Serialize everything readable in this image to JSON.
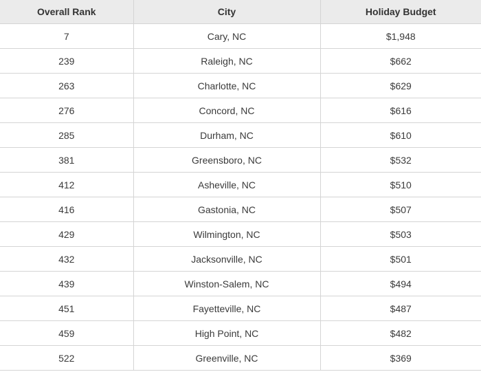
{
  "table": {
    "headers": [
      "Overall Rank",
      "City",
      "Holiday Budget"
    ],
    "rows": [
      [
        "7",
        "Cary, NC",
        "$1,948"
      ],
      [
        "239",
        "Raleigh, NC",
        "$662"
      ],
      [
        "263",
        "Charlotte, NC",
        "$629"
      ],
      [
        "276",
        "Concord, NC",
        "$616"
      ],
      [
        "285",
        "Durham, NC",
        "$610"
      ],
      [
        "381",
        "Greensboro, NC",
        "$532"
      ],
      [
        "412",
        "Asheville, NC",
        "$510"
      ],
      [
        "416",
        "Gastonia, NC",
        "$507"
      ],
      [
        "429",
        "Wilmington, NC",
        "$503"
      ],
      [
        "432",
        "Jacksonville, NC",
        "$501"
      ],
      [
        "439",
        "Winston-Salem, NC",
        "$494"
      ],
      [
        "451",
        "Fayetteville, NC",
        "$487"
      ],
      [
        "459",
        "High Point, NC",
        "$482"
      ],
      [
        "522",
        "Greenville, NC",
        "$369"
      ]
    ]
  }
}
